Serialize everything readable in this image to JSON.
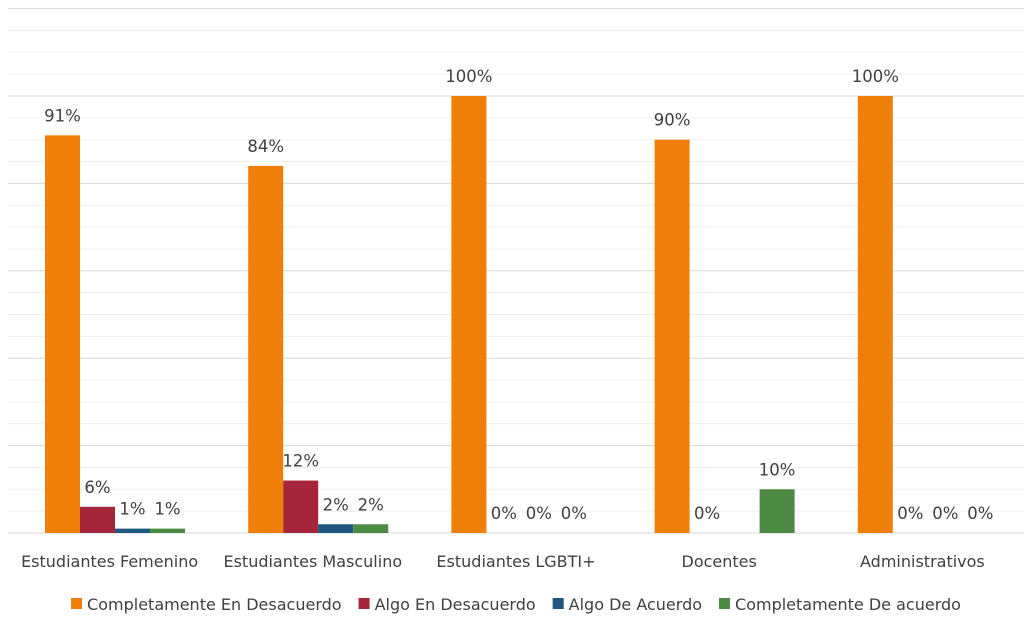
{
  "chart_data": {
    "type": "bar",
    "categories": [
      "Estudiantes Femenino",
      "Estudiantes Masculino",
      "Estudiantes LGBTI+",
      "Docentes",
      "Administrativos"
    ],
    "series": [
      {
        "name": "Completamente En Desacuerdo",
        "color": "#F07F09",
        "values": [
          91,
          84,
          100,
          90,
          100
        ],
        "labels": [
          "91%",
          "84%",
          "100%",
          "90%",
          "100%"
        ]
      },
      {
        "name": "Algo En Desacuerdo",
        "color": "#A5263A",
        "values": [
          6,
          12,
          0,
          0,
          0
        ],
        "labels": [
          "6%",
          "12%",
          "0%",
          "0%",
          "0%"
        ]
      },
      {
        "name": "Algo De Acuerdo",
        "color": "#1F577F",
        "values": [
          1,
          2,
          0,
          0,
          0
        ],
        "labels": [
          "1%",
          "2%",
          "0%",
          "",
          "0%"
        ]
      },
      {
        "name": "Completamente De acuerdo",
        "color": "#4D8A43",
        "values": [
          1,
          2,
          0,
          10,
          0
        ],
        "labels": [
          "1%",
          "2%",
          "0%",
          "10%",
          "0%"
        ]
      }
    ],
    "ylim": [
      0,
      120
    ],
    "grid": true,
    "legend": "bottom",
    "title": "",
    "xlabel": "",
    "ylabel": ""
  }
}
